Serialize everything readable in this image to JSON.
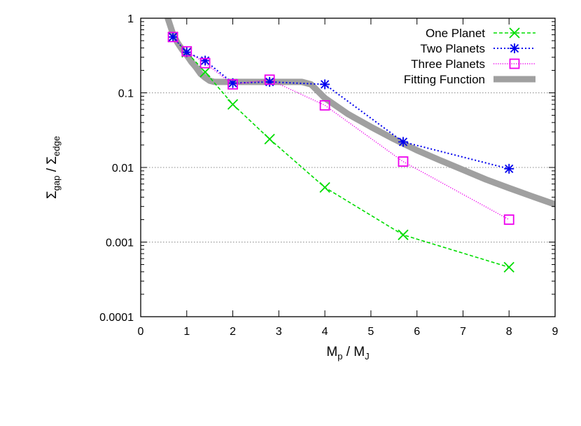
{
  "chart_data": {
    "type": "line",
    "title": "",
    "xlabel": {
      "main": "M",
      "sub1": "p",
      "mid": " / M",
      "sub2": "J"
    },
    "ylabel": {
      "main1": "Σ",
      "sub1": "gap",
      "mid": " / Σ",
      "sub2": "edge"
    },
    "xlim": [
      0,
      9
    ],
    "ylim": [
      0.0001,
      1
    ],
    "yscale": "log",
    "x_ticks": [
      0,
      1,
      2,
      3,
      4,
      5,
      6,
      7,
      8,
      9
    ],
    "x_tick_labels": [
      "0",
      "1",
      "2",
      "3",
      "4",
      "5",
      "6",
      "7",
      "8",
      "9"
    ],
    "y_ticks": [
      0.0001,
      0.001,
      0.01,
      0.1,
      1
    ],
    "y_tick_labels": [
      "0.0001",
      "0.001",
      "0.01",
      "0.1",
      "1"
    ],
    "grid": "horizontal dotted at major y ticks",
    "legend_position": "top-right",
    "series": [
      {
        "name": "One Planet",
        "color": "#00dd00",
        "line": "dashed",
        "marker": "x",
        "x": [
          0.7,
          1.0,
          1.4,
          2.0,
          2.8,
          4.0,
          5.7,
          8.0
        ],
        "y": [
          0.56,
          0.35,
          0.19,
          0.07,
          0.024,
          0.0054,
          0.00125,
          0.00046
        ]
      },
      {
        "name": "Two Planets",
        "color": "#0000ee",
        "line": "dotted",
        "marker": "asterisk",
        "x": [
          0.7,
          1.0,
          1.4,
          2.0,
          2.8,
          4.0,
          5.7,
          8.0
        ],
        "y": [
          0.56,
          0.35,
          0.27,
          0.135,
          0.14,
          0.13,
          0.022,
          0.0096
        ]
      },
      {
        "name": "Three Planets",
        "color": "#ee00ee",
        "line": "fine-dotted",
        "marker": "open-square",
        "x": [
          0.7,
          1.0,
          1.4,
          2.0,
          2.8,
          4.0,
          5.7,
          8.0
        ],
        "y": [
          0.56,
          0.36,
          0.25,
          0.13,
          0.15,
          0.068,
          0.012,
          0.002
        ]
      },
      {
        "name": "Fitting Function",
        "color": "#a0a0a0",
        "line": "thick-solid",
        "marker": "none",
        "x": [
          0.55,
          0.6,
          0.7,
          0.8,
          0.9,
          1.0,
          1.1,
          1.2,
          1.3,
          1.4,
          1.5,
          1.6,
          1.7,
          1.8,
          2.0,
          2.5,
          3.0,
          3.5,
          3.7,
          4.0,
          4.5,
          5.0,
          5.5,
          6.0,
          6.5,
          7.0,
          7.5,
          8.0,
          8.5,
          9.0
        ],
        "y": [
          1.2,
          0.95,
          0.62,
          0.47,
          0.38,
          0.32,
          0.26,
          0.22,
          0.18,
          0.16,
          0.145,
          0.14,
          0.14,
          0.14,
          0.14,
          0.14,
          0.14,
          0.14,
          0.13,
          0.085,
          0.052,
          0.035,
          0.024,
          0.017,
          0.0125,
          0.0093,
          0.0069,
          0.0053,
          0.0041,
          0.0032
        ]
      }
    ]
  }
}
